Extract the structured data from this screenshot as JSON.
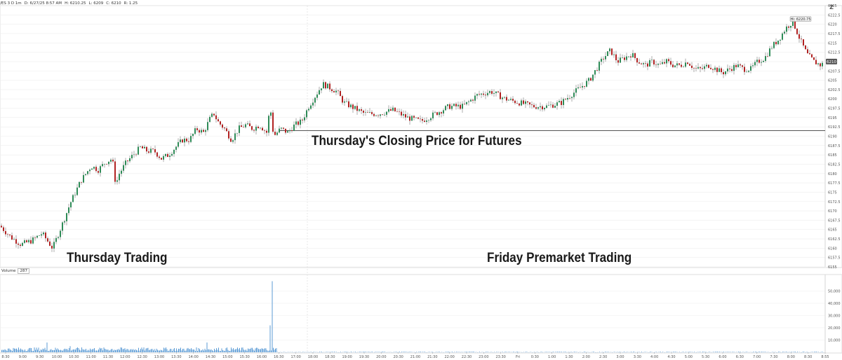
{
  "header": {
    "symbol": "/ES 3 D 1m",
    "date_label": "D: 6/27/25 8:57 AM",
    "open_label": "H: 6210.25",
    "high_label": "L: 6209",
    "close_label": "C: 6210",
    "range_label": "R: 1.25",
    "zoom_label": "Z"
  },
  "colors": {
    "up": "#2e8b57",
    "down": "#b22222",
    "volume": "#5b9bd5",
    "grid": "#eeeeee",
    "axis_text": "#555555",
    "closing_line": "#555555"
  },
  "annotations": {
    "thursday": "Thursday Trading",
    "closing": "Thursday's Closing Price for Futures",
    "premarket": "Friday Premarket Trading"
  },
  "chart_data": [
    {
      "type": "candlestick",
      "title": "",
      "y_range": [
        6155,
        6225
      ],
      "y_ticks": [
        "6225",
        "6222.5",
        "6220",
        "6217.5",
        "6215",
        "6212.5",
        "6210",
        "6207.5",
        "6205",
        "6202.5",
        "6200",
        "6197.5",
        "6195",
        "6192.5",
        "6190",
        "6187.5",
        "6185",
        "6182.5",
        "6180",
        "6177.5",
        "6175",
        "6172.5",
        "6170",
        "6167.5",
        "6165",
        "6162.5",
        "6160",
        "6157.5",
        "6155"
      ],
      "x_ticks": [
        "8:30",
        "9:00",
        "9:30",
        "10:00",
        "10:30",
        "11:00",
        "11:30",
        "12:00",
        "12:30",
        "13:00",
        "13:30",
        "14:00",
        "14:30",
        "15:00",
        "15:30",
        "16:00",
        "16:30",
        "17:00",
        "18:00",
        "18:30",
        "19:00",
        "19:30",
        "20:00",
        "20:30",
        "21:00",
        "21:30",
        "22:00",
        "22:30",
        "23:00",
        "23:30",
        "Fri",
        "0:30",
        "1:00",
        "1:30",
        "2:00",
        "2:30",
        "3:00",
        "3:30",
        "4:00",
        "4:30",
        "5:00",
        "5:30",
        "6:00",
        "6:30",
        "7:00",
        "7:30",
        "8:00",
        "8:30",
        "8:55"
      ],
      "price_path": [
        [
          0,
          6166
        ],
        [
          15,
          6163
        ],
        [
          30,
          6161
        ],
        [
          45,
          6162
        ],
        [
          60,
          6164
        ],
        [
          75,
          6160
        ],
        [
          90,
          6167
        ],
        [
          100,
          6172
        ],
        [
          115,
          6178
        ],
        [
          130,
          6182
        ],
        [
          140,
          6181
        ],
        [
          150,
          6183
        ],
        [
          160,
          6184
        ],
        [
          165,
          6177
        ],
        [
          170,
          6180
        ],
        [
          180,
          6183
        ],
        [
          190,
          6185
        ],
        [
          200,
          6187
        ],
        [
          210,
          6186
        ],
        [
          220,
          6186
        ],
        [
          230,
          6184
        ],
        [
          240,
          6185
        ],
        [
          250,
          6187
        ],
        [
          260,
          6189
        ],
        [
          270,
          6189
        ],
        [
          280,
          6192
        ],
        [
          290,
          6191
        ],
        [
          300,
          6195
        ],
        [
          305,
          6196
        ],
        [
          310,
          6194
        ],
        [
          320,
          6192
        ],
        [
          330,
          6189
        ],
        [
          340,
          6192
        ],
        [
          350,
          6193
        ],
        [
          360,
          6192
        ],
        [
          370,
          6193
        ],
        [
          380,
          6191
        ],
        [
          385,
          6198
        ],
        [
          390,
          6190
        ],
        [
          400,
          6192
        ],
        [
          410,
          6191
        ],
        [
          420,
          6193
        ],
        [
          430,
          6194
        ],
        [
          440,
          6198
        ],
        [
          450,
          6201
        ],
        [
          460,
          6204
        ],
        [
          470,
          6203
        ],
        [
          480,
          6202
        ],
        [
          490,
          6199
        ],
        [
          500,
          6198
        ],
        [
          520,
          6196
        ],
        [
          540,
          6196
        ],
        [
          560,
          6197
        ],
        [
          580,
          6195
        ],
        [
          600,
          6194
        ],
        [
          620,
          6196
        ],
        [
          640,
          6198
        ],
        [
          660,
          6198
        ],
        [
          680,
          6201
        ],
        [
          700,
          6202
        ],
        [
          720,
          6200
        ],
        [
          740,
          6199
        ],
        [
          760,
          6198
        ],
        [
          780,
          6198
        ],
        [
          800,
          6199
        ],
        [
          820,
          6202
        ],
        [
          840,
          6205
        ],
        [
          850,
          6208
        ],
        [
          860,
          6211
        ],
        [
          870,
          6213
        ],
        [
          880,
          6210
        ],
        [
          890,
          6211
        ],
        [
          900,
          6212
        ],
        [
          910,
          6210
        ],
        [
          920,
          6209
        ],
        [
          930,
          6210
        ],
        [
          940,
          6209
        ],
        [
          950,
          6210
        ],
        [
          960,
          6209
        ],
        [
          970,
          6209
        ],
        [
          980,
          6210
        ],
        [
          990,
          6208
        ],
        [
          1000,
          6208
        ],
        [
          1010,
          6209
        ],
        [
          1020,
          6208
        ],
        [
          1030,
          6207
        ],
        [
          1040,
          6208
        ],
        [
          1050,
          6209
        ],
        [
          1060,
          6208
        ],
        [
          1070,
          6208
        ],
        [
          1080,
          6210
        ],
        [
          1090,
          6211
        ],
        [
          1100,
          6214
        ],
        [
          1110,
          6216
        ],
        [
          1120,
          6219
        ],
        [
          1130,
          6220.75
        ],
        [
          1140,
          6216
        ],
        [
          1150,
          6212
        ],
        [
          1160,
          6210
        ],
        [
          1170,
          6209
        ],
        [
          1176,
          6210
        ]
      ],
      "high_label": "Hi: 6220.75",
      "last_price_label": "6210",
      "closing_price_level": 6191.5
    },
    {
      "type": "bar",
      "title": "",
      "legend": "Volume",
      "current_value": "287",
      "y_range": [
        0,
        60000
      ],
      "y_ticks": [
        "50,000",
        "40,000",
        "30,000",
        "20,000",
        "10,000"
      ],
      "spike_values": [
        [
          67,
          8000
        ],
        [
          100,
          5000
        ],
        [
          150,
          4000
        ],
        [
          295,
          8000
        ],
        [
          385,
          22000
        ],
        [
          388,
          58000
        ],
        [
          1183,
          2000
        ]
      ],
      "base_volume": 1000
    }
  ]
}
